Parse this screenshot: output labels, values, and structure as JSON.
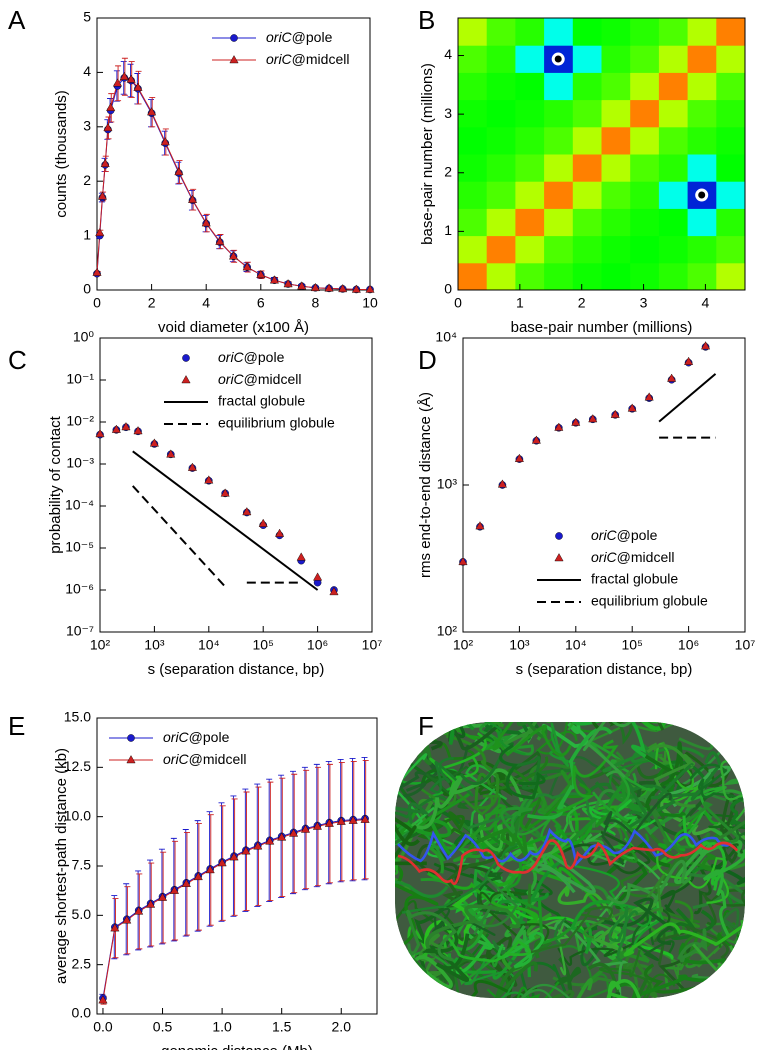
{
  "chart_data": [
    {
      "panel": "A",
      "type": "line",
      "xlabel": "void diameter (x100 Å)",
      "ylabel": "counts (thousands)",
      "xlim": [
        0,
        10
      ],
      "ylim": [
        0,
        5
      ],
      "xticks": [
        0,
        2,
        4,
        6,
        8,
        10
      ],
      "yticks": [
        0,
        1,
        2,
        3,
        4,
        5
      ],
      "legend": "upper right",
      "x": [
        0,
        0.1,
        0.2,
        0.3,
        0.4,
        0.5,
        0.75,
        1,
        1.25,
        1.5,
        2,
        2.5,
        3,
        3.5,
        4,
        4.5,
        5,
        5.5,
        6,
        6.5,
        7,
        7.5,
        8,
        8.5,
        9,
        9.5,
        10
      ],
      "series": [
        {
          "name": "oriC@pole",
          "color": "#1a1acc",
          "marker": "circle",
          "values": [
            0.3,
            1.0,
            1.7,
            2.3,
            2.95,
            3.3,
            3.75,
            3.9,
            3.85,
            3.7,
            3.25,
            2.7,
            2.15,
            1.65,
            1.22,
            0.88,
            0.62,
            0.42,
            0.28,
            0.18,
            0.11,
            0.07,
            0.04,
            0.03,
            0.02,
            0.01,
            0.01
          ],
          "errors": [
            0.02,
            0.05,
            0.08,
            0.12,
            0.18,
            0.22,
            0.28,
            0.3,
            0.3,
            0.28,
            0.25,
            0.22,
            0.2,
            0.18,
            0.15,
            0.12,
            0.1,
            0.08,
            0.06,
            0.05,
            0.04,
            0.03,
            0.02,
            0.02,
            0.01,
            0.01,
            0.01
          ]
        },
        {
          "name": "oriC@midcell",
          "color": "#cc2020",
          "marker": "triangle",
          "values": [
            0.32,
            1.05,
            1.72,
            2.32,
            2.98,
            3.35,
            3.8,
            3.92,
            3.87,
            3.72,
            3.27,
            2.72,
            2.17,
            1.66,
            1.23,
            0.89,
            0.62,
            0.42,
            0.28,
            0.18,
            0.11,
            0.07,
            0.04,
            0.03,
            0.02,
            0.01,
            0.01
          ],
          "errors": [
            0.02,
            0.05,
            0.08,
            0.14,
            0.2,
            0.26,
            0.32,
            0.34,
            0.33,
            0.3,
            0.27,
            0.24,
            0.21,
            0.19,
            0.16,
            0.13,
            0.11,
            0.09,
            0.07,
            0.05,
            0.04,
            0.03,
            0.02,
            0.02,
            0.01,
            0.01,
            0.01
          ]
        }
      ]
    },
    {
      "panel": "B",
      "type": "heatmap",
      "xlabel": "base-pair number (millions)",
      "ylabel": "base-pair number (millions)",
      "xlim": [
        0,
        4.64
      ],
      "ylim": [
        0,
        4.64
      ],
      "xticks": [
        0,
        1,
        2,
        3,
        4
      ],
      "yticks": [
        0,
        1,
        2,
        3,
        4
      ],
      "values": [
        [
          1.0,
          0.68,
          0.52,
          0.46,
          0.42,
          0.4,
          0.42,
          0.46,
          0.52,
          0.68
        ],
        [
          0.68,
          1.0,
          0.68,
          0.52,
          0.46,
          0.42,
          0.4,
          0.42,
          0.46,
          0.52
        ],
        [
          0.52,
          0.68,
          1.0,
          0.68,
          0.52,
          0.46,
          0.42,
          0.4,
          0.25,
          0.46
        ],
        [
          0.46,
          0.52,
          0.68,
          1.0,
          0.68,
          0.52,
          0.46,
          0.25,
          0.1,
          0.25
        ],
        [
          0.42,
          0.46,
          0.52,
          0.68,
          1.0,
          0.68,
          0.52,
          0.46,
          0.25,
          0.4
        ],
        [
          0.4,
          0.42,
          0.46,
          0.52,
          0.68,
          1.0,
          0.68,
          0.52,
          0.46,
          0.42
        ],
        [
          0.42,
          0.4,
          0.42,
          0.46,
          0.52,
          0.68,
          1.0,
          0.68,
          0.52,
          0.46
        ],
        [
          0.46,
          0.42,
          0.4,
          0.25,
          0.46,
          0.52,
          0.68,
          1.0,
          0.68,
          0.52
        ],
        [
          0.52,
          0.46,
          0.25,
          0.1,
          0.25,
          0.46,
          0.52,
          0.68,
          1.0,
          0.68
        ],
        [
          0.68,
          0.52,
          0.46,
          0.25,
          0.4,
          0.42,
          0.46,
          0.52,
          0.68,
          1.0
        ]
      ],
      "markers": [
        [
          1.62,
          3.94
        ],
        [
          3.94,
          1.62
        ]
      ]
    },
    {
      "panel": "C",
      "type": "scatter",
      "xlabel": "s (separation distance, bp)",
      "ylabel": "probability of contact",
      "xscale": "log",
      "yscale": "log",
      "xlim": [
        100,
        10000000
      ],
      "ylim": [
        1e-07,
        1
      ],
      "xticks": [
        {
          "value": 100,
          "label": "10²"
        },
        {
          "value": 1000,
          "label": "10³"
        },
        {
          "value": 10000,
          "label": "10⁴"
        },
        {
          "value": 100000,
          "label": "10⁵"
        },
        {
          "value": 1000000,
          "label": "10⁶"
        },
        {
          "value": 10000000,
          "label": "10⁷"
        }
      ],
      "yticks": [
        {
          "value": 1e-07,
          "label": "10⁻⁷"
        },
        {
          "value": 1e-06,
          "label": "10⁻⁶"
        },
        {
          "value": 1e-05,
          "label": "10⁻⁵"
        },
        {
          "value": 0.0001,
          "label": "10⁻⁴"
        },
        {
          "value": 0.001,
          "label": "10⁻³"
        },
        {
          "value": 0.01,
          "label": "10⁻²"
        },
        {
          "value": 0.1,
          "label": "10⁻¹"
        },
        {
          "value": 1,
          "label": "10⁰"
        }
      ],
      "legend": "upper right",
      "series": [
        {
          "name": "oriC@pole",
          "color": "#1a1acc",
          "marker": "circle",
          "x": [
            100,
            200,
            300,
            500,
            1000,
            2000,
            5000,
            10000,
            20000,
            50000,
            100000,
            200000,
            500000,
            1000000,
            2000000
          ],
          "values": [
            0.005,
            0.0065,
            0.0075,
            0.006,
            0.003,
            0.0017,
            0.0008,
            0.0004,
            0.0002,
            7e-05,
            3.5e-05,
            2e-05,
            5e-06,
            1.5e-06,
            1e-06
          ]
        },
        {
          "name": "oriC@midcell",
          "color": "#cc2020",
          "marker": "triangle",
          "x": [
            100,
            200,
            300,
            500,
            1000,
            2000,
            5000,
            10000,
            20000,
            50000,
            100000,
            200000,
            500000,
            1000000,
            2000000
          ],
          "values": [
            0.0052,
            0.0066,
            0.0076,
            0.0061,
            0.0031,
            0.0017,
            0.00082,
            0.00041,
            0.0002,
            7.2e-05,
            3.8e-05,
            2.2e-05,
            6e-06,
            2e-06,
            9e-07
          ]
        },
        {
          "name": "fractal globule",
          "color": "#000000",
          "style": "solid",
          "x": [
            400,
            1000000
          ],
          "values": [
            0.002,
            1e-06
          ]
        },
        {
          "name": "equilibrium globule",
          "color": "#000000",
          "style": "dashed",
          "x": [
            400,
            20000,
            30000,
            50000,
            500000
          ],
          "values": [
            0.0003,
            1.2e-06,
            null,
            1.5e-06,
            1.5e-06
          ]
        }
      ]
    },
    {
      "panel": "D",
      "type": "scatter",
      "xlabel": "s (separation distance, bp)",
      "ylabel": "rms end-to-end distance (Å)",
      "xscale": "log",
      "yscale": "log",
      "xlim": [
        100,
        10000000
      ],
      "ylim": [
        100,
        10000
      ],
      "xticks": [
        {
          "value": 100,
          "label": "10²"
        },
        {
          "value": 1000,
          "label": "10³"
        },
        {
          "value": 10000,
          "label": "10⁴"
        },
        {
          "value": 100000,
          "label": "10⁵"
        },
        {
          "value": 1000000,
          "label": "10⁶"
        },
        {
          "value": 10000000,
          "label": "10⁷"
        }
      ],
      "yticks": [
        {
          "value": 100,
          "label": "10²"
        },
        {
          "value": 1000,
          "label": "10³"
        },
        {
          "value": 10000,
          "label": "10⁴"
        }
      ],
      "legend": "lower right",
      "series": [
        {
          "name": "oriC@pole",
          "color": "#1a1acc",
          "marker": "circle",
          "x": [
            100,
            200,
            500,
            1000,
            2000,
            5000,
            10000,
            20000,
            50000,
            100000,
            200000,
            500000,
            1000000,
            2000000
          ],
          "values": [
            300,
            520,
            1000,
            1500,
            2000,
            2450,
            2650,
            2800,
            3000,
            3300,
            3900,
            5200,
            6800,
            8700
          ]
        },
        {
          "name": "oriC@midcell",
          "color": "#cc2020",
          "marker": "triangle",
          "x": [
            100,
            200,
            500,
            1000,
            2000,
            5000,
            10000,
            20000,
            50000,
            100000,
            200000,
            500000,
            1000000,
            2000000
          ],
          "values": [
            300,
            525,
            1010,
            1510,
            2010,
            2460,
            2660,
            2810,
            3010,
            3320,
            3950,
            5300,
            6900,
            8800
          ]
        },
        {
          "name": "fractal globule",
          "color": "#000000",
          "style": "solid",
          "x": [
            300000,
            3000000
          ],
          "values": [
            2700,
            5700
          ]
        },
        {
          "name": "equilibrium globule",
          "color": "#000000",
          "style": "dashed",
          "x": [
            300000,
            3000000
          ],
          "values": [
            2100,
            2100
          ]
        }
      ]
    },
    {
      "panel": "E",
      "type": "line",
      "xlabel": "genomic distance (Mb)",
      "ylabel": "average shortest-path distance (kb)",
      "xlim": [
        -0.05,
        2.3
      ],
      "ylim": [
        0,
        15
      ],
      "xticks": [
        {
          "value": 0,
          "label": "0.0"
        },
        {
          "value": 0.5,
          "label": "0.5"
        },
        {
          "value": 1,
          "label": "1.0"
        },
        {
          "value": 1.5,
          "label": "1.5"
        },
        {
          "value": 2,
          "label": "2.0"
        }
      ],
      "yticks": [
        {
          "value": 0,
          "label": "0.0"
        },
        {
          "value": 2.5,
          "label": "2.5"
        },
        {
          "value": 5,
          "label": "5.0"
        },
        {
          "value": 7.5,
          "label": "7.5"
        },
        {
          "value": 10,
          "label": "10.0"
        },
        {
          "value": 12.5,
          "label": "12.5"
        },
        {
          "value": 15,
          "label": "15.0"
        }
      ],
      "legend": "upper left",
      "x": [
        0,
        0.1,
        0.2,
        0.3,
        0.4,
        0.5,
        0.6,
        0.7,
        0.8,
        0.9,
        1.0,
        1.1,
        1.2,
        1.3,
        1.4,
        1.5,
        1.6,
        1.7,
        1.8,
        1.9,
        2.0,
        2.1,
        2.2
      ],
      "series": [
        {
          "name": "oriC@pole",
          "color": "#1a1acc",
          "marker": "circle",
          "values": [
            0.8,
            4.4,
            4.8,
            5.25,
            5.6,
            5.95,
            6.3,
            6.65,
            7.0,
            7.35,
            7.7,
            8.0,
            8.3,
            8.55,
            8.8,
            9.0,
            9.2,
            9.4,
            9.55,
            9.7,
            9.8,
            9.85,
            9.9
          ],
          "errors": [
            0.2,
            1.6,
            1.8,
            2.0,
            2.2,
            2.4,
            2.6,
            2.7,
            2.8,
            2.9,
            3.0,
            3.05,
            3.1,
            3.1,
            3.1,
            3.1,
            3.1,
            3.1,
            3.1,
            3.1,
            3.1,
            3.1,
            3.1
          ]
        },
        {
          "name": "oriC@midcell",
          "color": "#cc2020",
          "marker": "triangle",
          "values": [
            0.7,
            4.35,
            4.75,
            5.2,
            5.55,
            5.9,
            6.25,
            6.6,
            6.95,
            7.3,
            7.65,
            7.95,
            8.25,
            8.5,
            8.75,
            8.95,
            9.15,
            9.35,
            9.5,
            9.65,
            9.75,
            9.8,
            9.85
          ],
          "errors": [
            0.2,
            1.5,
            1.7,
            1.9,
            2.1,
            2.3,
            2.5,
            2.6,
            2.7,
            2.8,
            2.9,
            2.95,
            3.0,
            3.0,
            3.0,
            3.0,
            3.0,
            3.0,
            3.0,
            3.0,
            3.0,
            3.0,
            3.0
          ]
        }
      ]
    },
    {
      "panel": "F",
      "type": "image"
    }
  ]
}
